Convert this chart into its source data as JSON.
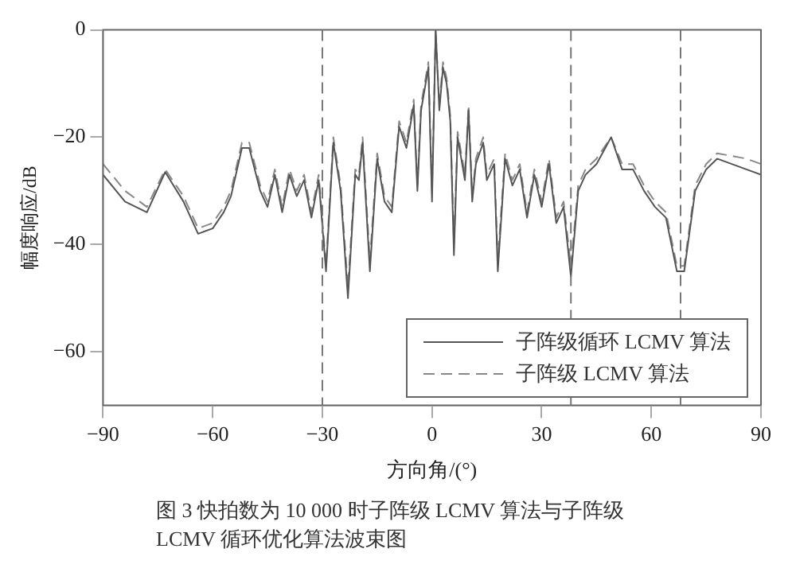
{
  "chart_data": {
    "type": "line",
    "xlabel": "方向角/(°)",
    "ylabel": "幅度响应/dB",
    "annotations": [
      "图 3 快拍数为 10 000 时子阵级 LCMV 算法与子阵级 LCMV 循环优化算法波束图"
    ],
    "x": [
      -90,
      -84,
      -78,
      -73,
      -68,
      -64,
      -60,
      -57,
      -55,
      -52,
      -50,
      -47,
      -45,
      -43,
      -41,
      -39,
      -37,
      -35,
      -33,
      -31,
      -29,
      -27,
      -25,
      -23,
      -21,
      -20,
      -19,
      -17,
      -15,
      -13,
      -11,
      -9,
      -7,
      -5,
      -4,
      -3,
      -1,
      0,
      1,
      2,
      3,
      4,
      5,
      6,
      7,
      9,
      10,
      11,
      12,
      14,
      15,
      17,
      18,
      20,
      22,
      24,
      26,
      28,
      30,
      32,
      34,
      36,
      38,
      40,
      42,
      45,
      49,
      52,
      55,
      58,
      61,
      64,
      67,
      69,
      72,
      75,
      78,
      82,
      86,
      90
    ],
    "series": [
      {
        "name": "子阵级循环 LCMV 算法",
        "color": "#555555",
        "line_style": "solid",
        "values": [
          -27,
          -32,
          -34,
          -26.5,
          -32,
          -38,
          -37,
          -34,
          -31,
          -22,
          -22,
          -30,
          -33,
          -27,
          -34,
          -27,
          -31,
          -28,
          -35,
          -28,
          -45,
          -21,
          -30,
          -50,
          -27,
          -28,
          -21,
          -45,
          -24,
          -32,
          -34,
          -18,
          -22,
          -14,
          -30,
          -15,
          -7,
          -32,
          0,
          -15,
          -7,
          -10,
          -17,
          -42,
          -20,
          -28,
          -15,
          -32,
          -25,
          -21,
          -28,
          -25,
          -45,
          -24,
          -29,
          -26,
          -35,
          -27,
          -33,
          -25,
          -36,
          -33,
          -46,
          -30,
          -27,
          -25,
          -20,
          -26,
          -26,
          -30,
          -33,
          -35,
          -45,
          -45,
          -30,
          -26,
          -24,
          -25,
          -26,
          -27
        ]
      },
      {
        "name": "子阵级 LCMV 算法",
        "color": "#888888",
        "line_style": "dashed",
        "values": [
          -25,
          -30,
          -33,
          -26,
          -31,
          -37,
          -36,
          -33,
          -30,
          -21,
          -21,
          -29,
          -32,
          -26,
          -33,
          -26,
          -30,
          -27,
          -34,
          -27,
          -44,
          -20,
          -29,
          -48,
          -26,
          -27,
          -20,
          -43,
          -23,
          -31,
          -33,
          -17,
          -21,
          -13,
          -29,
          -14,
          -6,
          -30,
          0,
          -14,
          -6,
          -9,
          -16,
          -40,
          -19,
          -27,
          -14,
          -31,
          -24,
          -20,
          -27,
          -24,
          -43,
          -23,
          -28,
          -25,
          -34,
          -26,
          -32,
          -24,
          -35,
          -32,
          -44,
          -29,
          -26,
          -24,
          -20,
          -25,
          -25,
          -29,
          -32,
          -34,
          -44,
          -44,
          -29,
          -25,
          -23,
          -23.5,
          -24,
          -25
        ]
      }
    ],
    "xlim": [
      -90,
      90
    ],
    "xticks": [
      -90,
      -60,
      -30,
      0,
      30,
      60,
      90
    ],
    "ylim": [
      -70,
      0
    ],
    "yticks": [
      -60,
      -40,
      -20,
      0
    ],
    "ref_lines": [
      {
        "axis": "x",
        "value": -30,
        "color": "#777777",
        "line_style": "dashed"
      },
      {
        "axis": "x",
        "value": 38,
        "color": "#777777",
        "line_style": "dashed"
      },
      {
        "axis": "x",
        "value": 68,
        "color": "#777777",
        "line_style": "dashed"
      }
    ],
    "grid": false,
    "legend": "bottom right"
  }
}
